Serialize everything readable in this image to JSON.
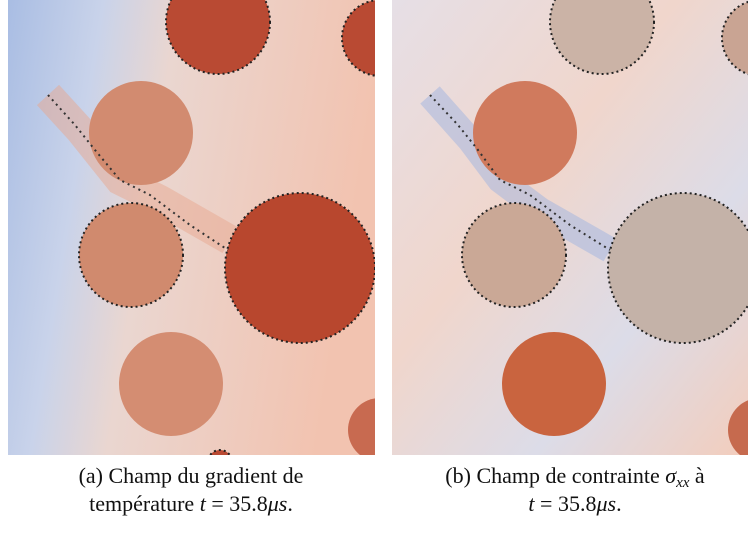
{
  "panels": [
    {
      "caption": {
        "lines": [
          [
            "(a) Champ du gradient de"
          ],
          [
            "température ",
            "t",
            " = 35.8",
            "μs",
            "."
          ]
        ]
      }
    },
    {
      "caption": {
        "lines": [
          [
            "(b) Champ de contrainte ",
            "σ",
            "xx",
            " à"
          ],
          [
            "t",
            " = 35.8",
            "μs",
            "."
          ]
        ]
      }
    }
  ]
}
